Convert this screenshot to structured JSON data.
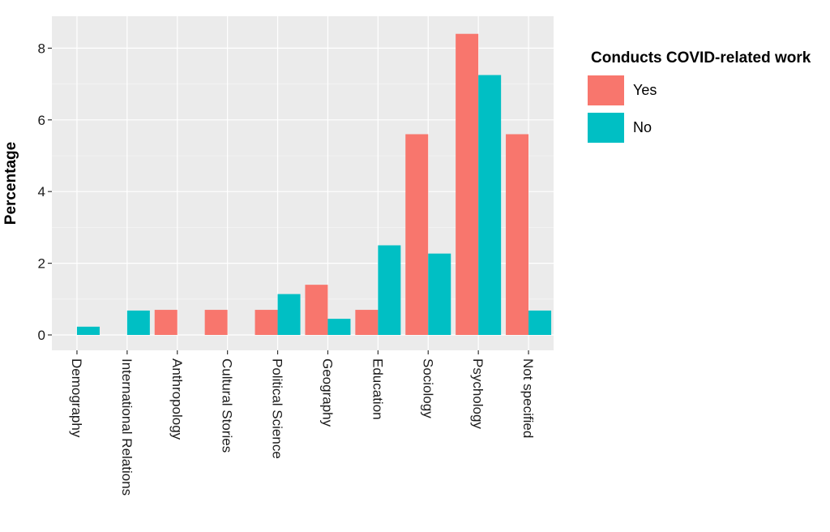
{
  "chart_data": {
    "type": "bar",
    "title": "",
    "xlabel": "",
    "ylabel": "Percentage",
    "ylim": [
      -0.35,
      8.8
    ],
    "yticks": [
      0,
      2,
      4,
      6,
      8
    ],
    "grid": true,
    "legend": {
      "title": "Conducts COVID-related work",
      "placement": "right"
    },
    "categories": [
      "Demography",
      "International Relations",
      "Anthropology",
      "Cultural Stories",
      "Political Science",
      "Geography",
      "Education",
      "Sociology",
      "Psychology",
      "Not specified"
    ],
    "series": [
      {
        "name": "Yes",
        "color": "#F8766D",
        "values": [
          0,
          0,
          0.7,
          0.7,
          0.7,
          1.4,
          0.7,
          5.6,
          8.4,
          5.6
        ]
      },
      {
        "name": "No",
        "color": "#00BFC4",
        "values": [
          0.23,
          0.68,
          0,
          0,
          1.14,
          0.45,
          2.5,
          2.27,
          7.25,
          0.68
        ]
      }
    ]
  },
  "colors": {
    "panel_background": "#EBEBEB",
    "major_grid": "#FFFFFF",
    "minor_grid": "#F5F5F5"
  }
}
